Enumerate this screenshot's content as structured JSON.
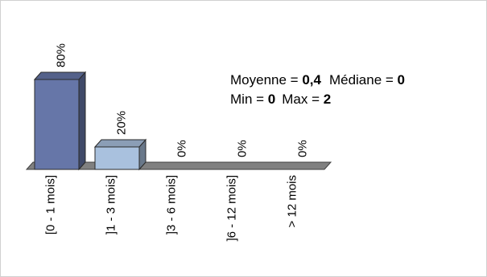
{
  "chart_data": {
    "type": "bar",
    "categories": [
      "[0 - 1 mois]",
      "]1 - 3 mois]",
      "]3 - 6 mois]",
      "]6 - 12 mois]",
      "> 12 mois"
    ],
    "values": [
      80,
      20,
      0,
      0,
      0
    ],
    "value_labels": [
      "80%",
      "20%",
      "0%",
      "0%",
      "0%"
    ],
    "ylim": [
      0,
      80
    ],
    "grid": false,
    "legend": "none",
    "bar_colors": [
      "#6676A8",
      "#A9C1DE"
    ],
    "floor_color": "#808080"
  },
  "stats": {
    "moyenne_label": "Moyenne = ",
    "moyenne_value": "0,4",
    "mediane_label": "Médiane = ",
    "mediane_value": "0",
    "min_label": "Min = ",
    "min_value": "0",
    "max_label": "Max = ",
    "max_value": "2"
  }
}
